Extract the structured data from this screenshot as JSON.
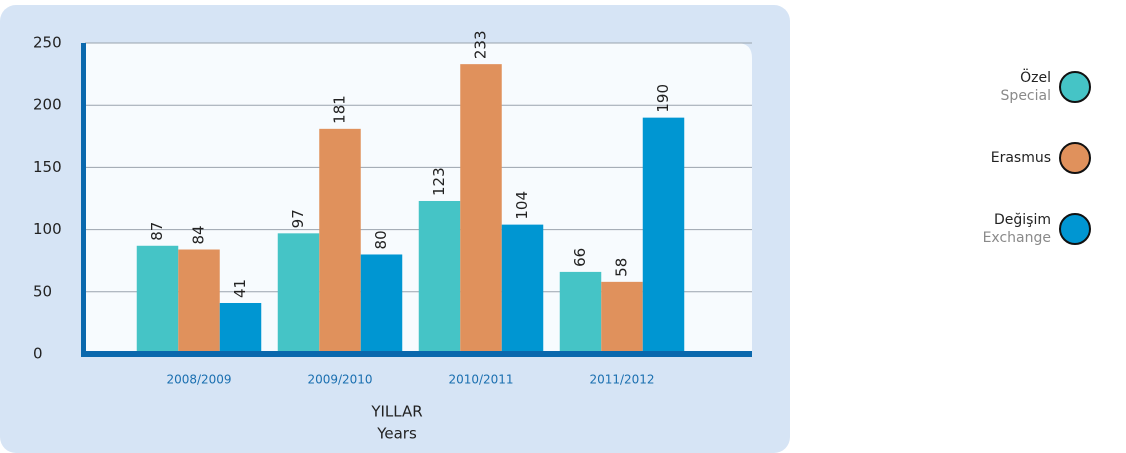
{
  "chart_data": {
    "type": "bar",
    "categories": [
      "2008/2009",
      "2009/2010",
      "2010/2011",
      "2011/2012"
    ],
    "series": [
      {
        "name": "Özel",
        "subtitle": "Special",
        "color": "#45c4c6",
        "values": [
          87,
          97,
          123,
          66
        ]
      },
      {
        "name": "Erasmus",
        "color": "#e0915c",
        "values": [
          84,
          181,
          233,
          58
        ]
      },
      {
        "name": "Değişim",
        "subtitle": "Exchange",
        "color": "#0096d2",
        "values": [
          41,
          80,
          104,
          190
        ]
      }
    ],
    "xlabel": "YILLAR",
    "xlabel_en": "Years",
    "ylim": [
      0,
      250
    ],
    "yticks": [
      0,
      50,
      100,
      150,
      200,
      250
    ],
    "grid": true,
    "legend": "right"
  }
}
